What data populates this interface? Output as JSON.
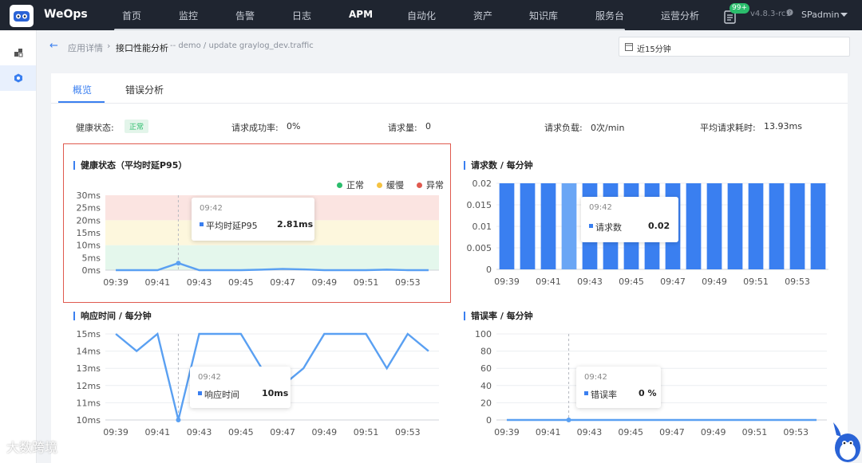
{
  "app": {
    "brand": "WeOps",
    "version": "v4.8.3-rc1",
    "user": "SPadmin",
    "notification_badge": "99+"
  },
  "nav": [
    "首页",
    "监控",
    "告警",
    "日志",
    "APM",
    "自动化",
    "资产",
    "知识库",
    "服务台",
    "运营分析"
  ],
  "breadcrumb": {
    "back": "←",
    "parent": "应用详情",
    "sep": "›",
    "current": "接口性能分析",
    "detail": "-- demo / update graylog_dev.traffic"
  },
  "time_range": "近15分钟",
  "tabs": [
    "概览",
    "错误分析"
  ],
  "stats": {
    "health_label": "健康状态:",
    "health_value": "正常",
    "success_label": "请求成功率:",
    "success_value": "0%",
    "req_label": "请求量:",
    "req_value": "0",
    "load_label": "请求负载:",
    "load_value": "0次/min",
    "avg_label": "平均请求耗时:",
    "avg_value": "13.93ms"
  },
  "colors": {
    "accent": "#3a7ff0",
    "normal": "#2bbd6c",
    "slow": "#f5c342",
    "error": "#e05a4f",
    "line": "#5aa0f2"
  },
  "chart_data": [
    {
      "type": "line",
      "title": "健康状态（平均时延P95）",
      "x": [
        "09:39",
        "09:40",
        "09:41",
        "09:42",
        "09:43",
        "09:44",
        "09:45",
        "09:46",
        "09:47",
        "09:48",
        "09:49",
        "09:50",
        "09:51",
        "09:52",
        "09:53",
        "09:54"
      ],
      "y_ticks": [
        "0ms",
        "5ms",
        "10ms",
        "15ms",
        "20ms",
        "25ms",
        "30ms"
      ],
      "x_ticks": [
        "09:39",
        "09:41",
        "09:43",
        "09:45",
        "09:47",
        "09:49",
        "09:51",
        "09:53"
      ],
      "ylim": [
        0,
        30
      ],
      "bands": [
        {
          "name": "正常",
          "from": 0,
          "to": 10
        },
        {
          "name": "缓慢",
          "from": 10,
          "to": 20
        },
        {
          "name": "异常",
          "from": 20,
          "to": 30
        }
      ],
      "legend": [
        "正常",
        "缓慢",
        "异常"
      ],
      "series": [
        {
          "name": "平均时延P95",
          "values": [
            0,
            0,
            0,
            2.81,
            0,
            0,
            0,
            0.2,
            0.5,
            0.3,
            0,
            0,
            0,
            0.2,
            0,
            0
          ]
        }
      ],
      "tooltip": {
        "time": "09:42",
        "label": "平均时延P95",
        "value": "2.81ms"
      }
    },
    {
      "type": "bar",
      "title": "请求数 / 每分钟",
      "x": [
        "09:39",
        "09:40",
        "09:41",
        "09:42",
        "09:43",
        "09:44",
        "09:45",
        "09:46",
        "09:47",
        "09:48",
        "09:49",
        "09:50",
        "09:51",
        "09:52",
        "09:53",
        "09:54"
      ],
      "y_ticks": [
        "0",
        "0.005",
        "0.01",
        "0.015",
        "0.02"
      ],
      "x_ticks": [
        "09:39",
        "09:41",
        "09:43",
        "09:45",
        "09:47",
        "09:49",
        "09:51",
        "09:53"
      ],
      "ylim": [
        0,
        0.02
      ],
      "series": [
        {
          "name": "请求数",
          "values": [
            0.02,
            0.02,
            0.02,
            0.02,
            0.02,
            0.02,
            0.02,
            0.02,
            0.02,
            0.02,
            0.02,
            0.02,
            0.02,
            0.02,
            0.02,
            0.02
          ]
        }
      ],
      "tooltip": {
        "time": "09:42",
        "label": "请求数",
        "value": "0.02"
      }
    },
    {
      "type": "line",
      "title": "响应时间 / 每分钟",
      "x": [
        "09:39",
        "09:40",
        "09:41",
        "09:42",
        "09:43",
        "09:44",
        "09:45",
        "09:46",
        "09:47",
        "09:48",
        "09:49",
        "09:50",
        "09:51",
        "09:52",
        "09:53",
        "09:54"
      ],
      "y_ticks": [
        "10ms",
        "11ms",
        "12ms",
        "13ms",
        "14ms",
        "15ms"
      ],
      "x_ticks": [
        "09:39",
        "09:41",
        "09:43",
        "09:45",
        "09:47",
        "09:49",
        "09:51",
        "09:53"
      ],
      "ylim": [
        10,
        15
      ],
      "series": [
        {
          "name": "响应时间",
          "values": [
            15,
            14,
            15,
            10,
            15,
            15,
            15,
            13,
            12,
            13,
            15,
            15,
            15,
            13,
            15,
            14
          ]
        }
      ],
      "tooltip": {
        "time": "09:42",
        "label": "响应时间",
        "value": "10ms"
      }
    },
    {
      "type": "line",
      "title": "错误率 / 每分钟",
      "x": [
        "09:39",
        "09:40",
        "09:41",
        "09:42",
        "09:43",
        "09:44",
        "09:45",
        "09:46",
        "09:47",
        "09:48",
        "09:49",
        "09:50",
        "09:51",
        "09:52",
        "09:53",
        "09:54"
      ],
      "y_ticks": [
        "0",
        "20",
        "40",
        "60",
        "80",
        "100"
      ],
      "x_ticks": [
        "09:39",
        "09:41",
        "09:43",
        "09:45",
        "09:47",
        "09:49",
        "09:51",
        "09:53"
      ],
      "ylim": [
        0,
        100
      ],
      "series": [
        {
          "name": "错误率",
          "values": [
            0,
            0,
            0,
            0,
            0,
            0,
            0,
            0,
            0,
            0,
            0,
            0,
            0,
            0,
            0,
            0
          ]
        }
      ],
      "tooltip": {
        "time": "09:42",
        "label": "错误率",
        "value": "0 %"
      }
    }
  ],
  "watermark": "大数跨境"
}
